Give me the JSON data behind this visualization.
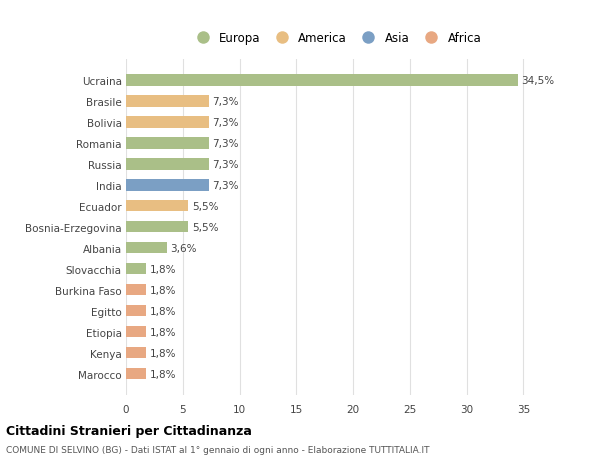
{
  "categories": [
    "Marocco",
    "Kenya",
    "Etiopia",
    "Egitto",
    "Burkina Faso",
    "Slovacchia",
    "Albania",
    "Bosnia-Erzegovina",
    "Ecuador",
    "India",
    "Russia",
    "Romania",
    "Bolivia",
    "Brasile",
    "Ucraina"
  ],
  "values": [
    1.8,
    1.8,
    1.8,
    1.8,
    1.8,
    1.8,
    3.6,
    5.5,
    5.5,
    7.3,
    7.3,
    7.3,
    7.3,
    7.3,
    34.5
  ],
  "labels": [
    "1,8%",
    "1,8%",
    "1,8%",
    "1,8%",
    "1,8%",
    "1,8%",
    "3,6%",
    "5,5%",
    "5,5%",
    "7,3%",
    "7,3%",
    "7,3%",
    "7,3%",
    "7,3%",
    "34,5%"
  ],
  "colors": [
    "#E8A882",
    "#E8A882",
    "#E8A882",
    "#E8A882",
    "#E8A882",
    "#AABF88",
    "#AABF88",
    "#AABF88",
    "#E8BE82",
    "#7B9FC4",
    "#AABF88",
    "#AABF88",
    "#E8BE82",
    "#E8BE82",
    "#AABF88"
  ],
  "legend": [
    {
      "label": "Europa",
      "color": "#AABF88"
    },
    {
      "label": "America",
      "color": "#E8BE82"
    },
    {
      "label": "Asia",
      "color": "#7B9FC4"
    },
    {
      "label": "Africa",
      "color": "#E8A882"
    }
  ],
  "title": "Cittadini Stranieri per Cittadinanza",
  "subtitle": "COMUNE DI SELVINO (BG) - Dati ISTAT al 1° gennaio di ogni anno - Elaborazione TUTTITALIA.IT",
  "xlim": [
    0,
    37
  ],
  "xticks": [
    0,
    5,
    10,
    15,
    20,
    25,
    30,
    35
  ],
  "background_color": "#ffffff",
  "grid_color": "#e0e0e0",
  "bar_height": 0.55
}
